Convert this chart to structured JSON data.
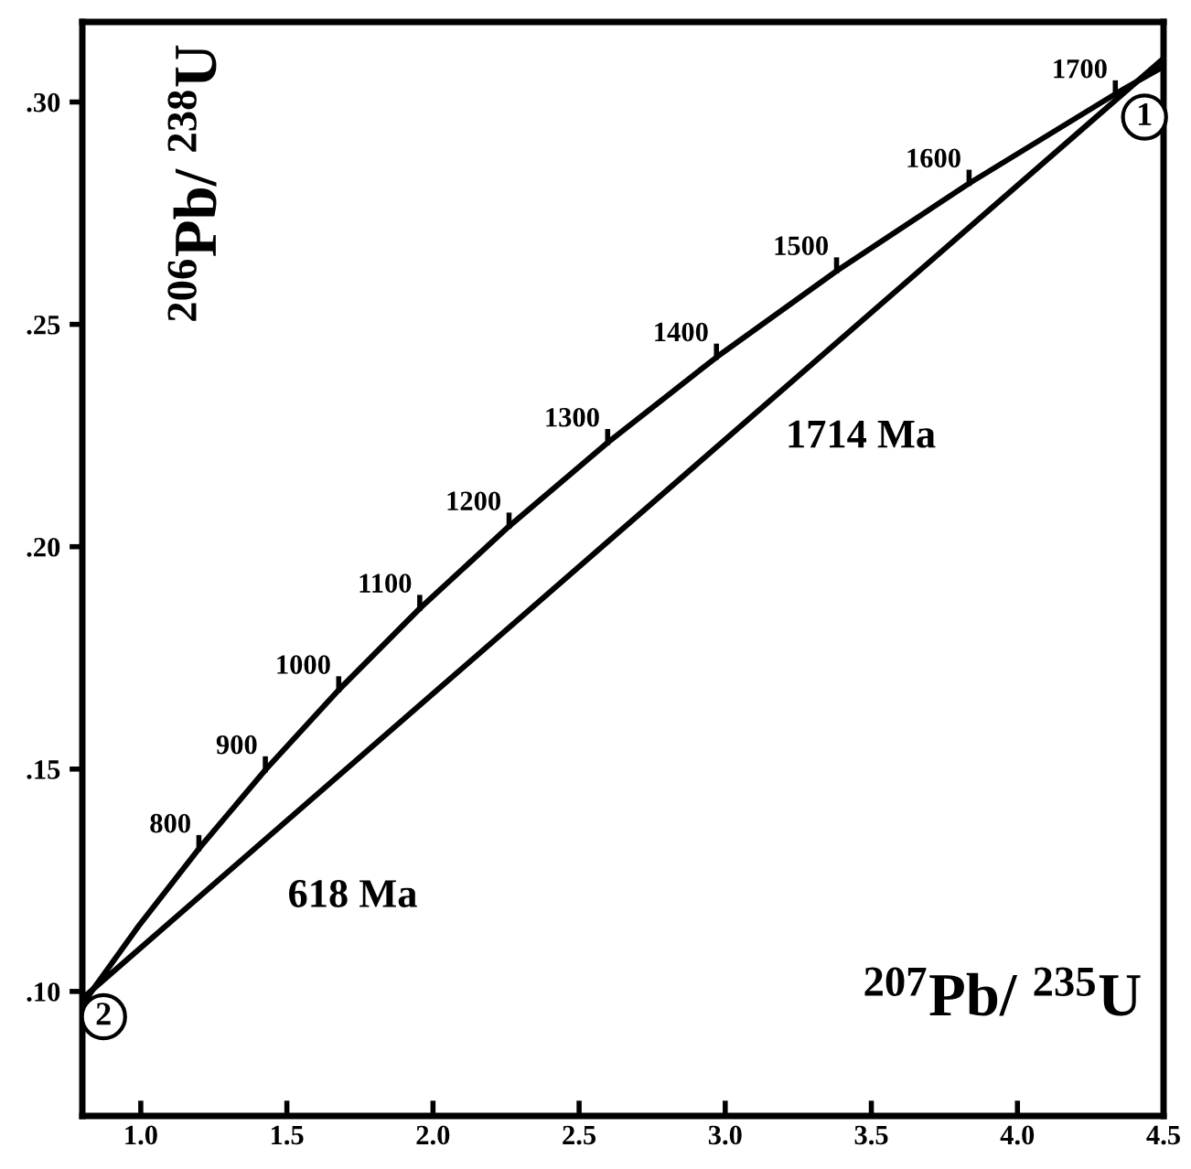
{
  "chart_data": {
    "type": "line",
    "xlabel": "$^{207}$Pb/ $^{235}$U",
    "ylabel": "$^{206}$Pb/ $^{238}$U",
    "xlim": [
      0.8,
      4.5
    ],
    "ylim": [
      0.072,
      0.318
    ],
    "xticks": [
      {
        "value": 1,
        "label": "1.0"
      },
      1.5,
      {
        "value": 2,
        "label": "2.0"
      },
      2.5,
      {
        "value": 3,
        "label": "3.0"
      },
      3.5,
      {
        "value": 4,
        "label": "4.0"
      },
      4.5
    ],
    "yticks": [
      {
        "value": 0.1,
        "label": ".10"
      },
      {
        "value": 0.15,
        "label": ".15"
      },
      {
        "value": 0.2,
        "label": ".20"
      },
      {
        "value": 0.25,
        "label": ".25"
      },
      {
        "value": 0.3,
        "label": ".30"
      }
    ],
    "grid": false,
    "legend": false,
    "marker": "none",
    "line_style": "solid",
    "series": [
      {
        "color": "#000000",
        "x": [
          0.8056,
          0.8379,
          0.9926,
          1.1989,
          1.4263,
          1.6774,
          1.9546,
          2.2603,
          2.5977,
          2.97,
          3.381,
          3.8345,
          4.335,
          4.4088,
          4.5
        ],
        "values": [
          0.0975,
          0.1006,
          0.1147,
          0.1321,
          0.1498,
          0.1678,
          0.1861,
          0.2046,
          0.2234,
          0.2426,
          0.262,
          0.2817,
          0.3018,
          0.3046,
          0.308
        ]
      },
      {
        "color": "#000000",
        "x": [
          0.8,
          4.5
        ],
        "values": [
          0.0984,
          0.3098
        ]
      }
    ],
    "annotations": [
      {
        "text": "800",
        "x": 1.1989,
        "y": 0.1321
      },
      {
        "text": "900",
        "x": 1.4263,
        "y": 0.1498
      },
      {
        "text": "1000",
        "x": 1.6774,
        "y": 0.1678
      },
      {
        "text": "1100",
        "x": 1.9546,
        "y": 0.1861
      },
      {
        "text": "1200",
        "x": 2.2603,
        "y": 0.2046
      },
      {
        "text": "1300",
        "x": 2.5977,
        "y": 0.2234
      },
      {
        "text": "1400",
        "x": 2.97,
        "y": 0.2426
      },
      {
        "text": "1500",
        "x": 3.381,
        "y": 0.262
      },
      {
        "text": "1600",
        "x": 3.8345,
        "y": 0.2817
      },
      {
        "text": "1700",
        "x": 4.335,
        "y": 0.3018
      },
      {
        "text": "1",
        "x": 4.4088,
        "y": 0.3046
      },
      {
        "text": "2",
        "x": 0.8379,
        "y": 0.1006
      },
      "1714 Ma",
      "618 Ma"
    ]
  }
}
